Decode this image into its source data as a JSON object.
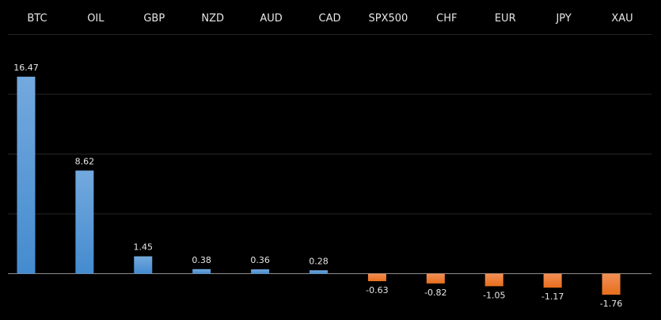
{
  "chart_data": {
    "type": "bar",
    "categories": [
      "BTC",
      "OIL",
      "GBP",
      "NZD",
      "AUD",
      "CAD",
      "SPX500",
      "CHF",
      "EUR",
      "JPY",
      "XAU"
    ],
    "values": [
      16.47,
      8.62,
      1.45,
      0.38,
      0.36,
      0.28,
      -0.63,
      -0.82,
      -1.05,
      -1.17,
      -1.76
    ],
    "data_labels": [
      "16.47",
      "8.62",
      "1.45",
      "0.38",
      "0.36",
      "0.28",
      "-0.63",
      "-0.82",
      "-1.05",
      "-1.17",
      "-1.76"
    ],
    "title": "",
    "xlabel": "",
    "ylabel": "",
    "ylim": [
      -3.9,
      20
    ],
    "gridlines": [
      5,
      10,
      15,
      20
    ],
    "grid": true,
    "category_axis_position": "top",
    "colors": {
      "positive_top": "#73a9de",
      "positive_bottom": "#448bcf",
      "negative_top": "#f28f55",
      "negative_bottom": "#e86e1c",
      "background": "#000000",
      "grid": "#262626",
      "zero_line": "#8c8c8c"
    }
  }
}
